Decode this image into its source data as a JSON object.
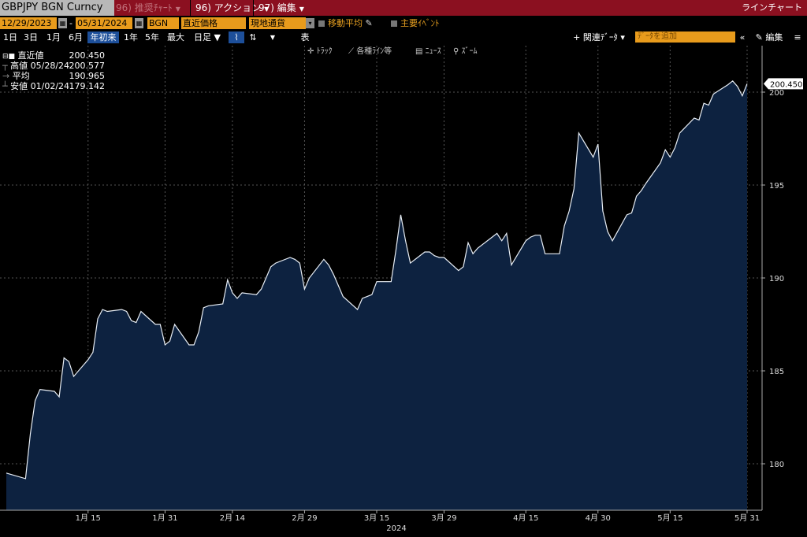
{
  "titlebar": {
    "ticker": "GBPJPY BGN Curncy",
    "menu1": "96) 推奨ﾁｬｰﾄ",
    "menu2": "96) アクション",
    "menu3": "97) 編集",
    "chart_type": "ラインチャート"
  },
  "controls": {
    "start_date": "12/29/2023",
    "end_date": "05/31/2024",
    "source": "BGN",
    "price_type": "直近価格",
    "currency": "現地通貨",
    "moving_avg": "移動平均",
    "key_events": "主要ｲﾍﾞﾝﾄ"
  },
  "periods": [
    "1日",
    "3日",
    "1月",
    "6月",
    "年初来",
    "1年",
    "5年",
    "最大",
    "日足 ▼"
  ],
  "active_period": "年初来",
  "table_label": "表",
  "related_data": "+ 関連ﾃﾞｰﾀ ▾",
  "add_data_placeholder": "ﾃﾞｰﾀを追加",
  "edit_label": "編集",
  "chart_tools": {
    "track": "ﾄﾗｯｸ",
    "lines": "各種ﾗｲﾝ等",
    "news": "ﾆｭｰｽ",
    "zoom": "ｽﾞｰﾑ"
  },
  "legend": {
    "last_label": "直近値",
    "last_value": "200.450",
    "high_label": "高値",
    "high_date": "05/28/24",
    "high_value": "200.577",
    "avg_label": "平均",
    "avg_value": "190.965",
    "low_label": "安値",
    "low_date": "01/02/24",
    "low_value": "179.142"
  },
  "colors": {
    "title_bg": "#8b1020",
    "field": "#e89b1c",
    "area": "#0d2240",
    "line": "#e8eef5"
  },
  "chart_data": {
    "type": "area",
    "x": [
      "2023-12-29",
      "2024-01-02",
      "2024-01-03",
      "2024-01-04",
      "2024-01-05",
      "2024-01-08",
      "2024-01-09",
      "2024-01-10",
      "2024-01-11",
      "2024-01-12",
      "2024-01-15",
      "2024-01-16",
      "2024-01-17",
      "2024-01-18",
      "2024-01-19",
      "2024-01-22",
      "2024-01-23",
      "2024-01-24",
      "2024-01-25",
      "2024-01-26",
      "2024-01-29",
      "2024-01-30",
      "2024-01-31",
      "2024-02-01",
      "2024-02-02",
      "2024-02-05",
      "2024-02-06",
      "2024-02-07",
      "2024-02-08",
      "2024-02-09",
      "2024-02-12",
      "2024-02-13",
      "2024-02-14",
      "2024-02-15",
      "2024-02-16",
      "2024-02-19",
      "2024-02-20",
      "2024-02-21",
      "2024-02-22",
      "2024-02-23",
      "2024-02-26",
      "2024-02-27",
      "2024-02-28",
      "2024-02-29",
      "2024-03-01",
      "2024-03-04",
      "2024-03-05",
      "2024-03-06",
      "2024-03-07",
      "2024-03-08",
      "2024-03-11",
      "2024-03-12",
      "2024-03-13",
      "2024-03-14",
      "2024-03-15",
      "2024-03-18",
      "2024-03-19",
      "2024-03-20",
      "2024-03-21",
      "2024-03-22",
      "2024-03-25",
      "2024-03-26",
      "2024-03-27",
      "2024-03-28",
      "2024-03-29",
      "2024-04-01",
      "2024-04-02",
      "2024-04-03",
      "2024-04-04",
      "2024-04-05",
      "2024-04-08",
      "2024-04-09",
      "2024-04-10",
      "2024-04-11",
      "2024-04-12",
      "2024-04-15",
      "2024-04-16",
      "2024-04-17",
      "2024-04-18",
      "2024-04-19",
      "2024-04-22",
      "2024-04-23",
      "2024-04-24",
      "2024-04-25",
      "2024-04-26",
      "2024-04-29",
      "2024-04-30",
      "2024-05-01",
      "2024-05-02",
      "2024-05-03",
      "2024-05-06",
      "2024-05-07",
      "2024-05-08",
      "2024-05-09",
      "2024-05-10",
      "2024-05-13",
      "2024-05-14",
      "2024-05-15",
      "2024-05-16",
      "2024-05-17",
      "2024-05-20",
      "2024-05-21",
      "2024-05-22",
      "2024-05-23",
      "2024-05-24",
      "2024-05-27",
      "2024-05-28",
      "2024-05-29",
      "2024-05-30",
      "2024-05-31"
    ],
    "values": [
      179.5,
      179.2,
      181.6,
      183.4,
      184.0,
      183.9,
      183.6,
      185.7,
      185.5,
      184.7,
      185.6,
      186.0,
      187.8,
      188.3,
      188.2,
      188.3,
      188.2,
      187.7,
      187.6,
      188.2,
      187.5,
      187.5,
      186.4,
      186.6,
      187.5,
      186.4,
      186.4,
      187.1,
      188.4,
      188.5,
      188.6,
      189.9,
      189.2,
      188.9,
      189.2,
      189.1,
      189.4,
      190.0,
      190.6,
      190.8,
      191.1,
      191.0,
      190.8,
      189.4,
      190.0,
      191.0,
      190.7,
      190.2,
      189.6,
      189.0,
      188.3,
      188.9,
      189.0,
      189.1,
      189.8,
      189.8,
      191.5,
      193.4,
      192.0,
      190.8,
      191.4,
      191.4,
      191.2,
      191.1,
      191.1,
      190.4,
      190.6,
      191.9,
      191.3,
      191.6,
      192.2,
      192.4,
      192.0,
      192.4,
      190.7,
      192.0,
      192.2,
      192.3,
      192.3,
      191.3,
      191.3,
      192.8,
      193.6,
      194.8,
      197.8,
      196.5,
      197.2,
      193.6,
      192.5,
      192.0,
      193.4,
      193.5,
      194.4,
      194.7,
      195.1,
      196.2,
      196.9,
      196.5,
      197.0,
      197.8,
      198.6,
      198.5,
      199.4,
      199.3,
      199.9,
      200.4,
      200.6,
      200.3,
      199.8,
      200.45
    ],
    "ylim": [
      177.5,
      202.5
    ],
    "yticks": [
      180,
      185,
      190,
      195,
      200
    ],
    "xticks": [
      {
        "date": "2024-01-15",
        "label": "1月 15"
      },
      {
        "date": "2024-01-31",
        "label": "1月 31"
      },
      {
        "date": "2024-02-14",
        "label": "2月 14"
      },
      {
        "date": "2024-02-29",
        "label": "2月 29"
      },
      {
        "date": "2024-03-15",
        "label": "3月 15"
      },
      {
        "date": "2024-03-29",
        "label": "3月 29"
      },
      {
        "date": "2024-04-15",
        "label": "4月 15"
      },
      {
        "date": "2024-04-30",
        "label": "4月 30"
      },
      {
        "date": "2024-05-15",
        "label": "5月 15"
      },
      {
        "date": "2024-05-31",
        "label": "5月 31"
      }
    ],
    "year_label": "2024",
    "last_label": "200.450",
    "grid": true
  }
}
